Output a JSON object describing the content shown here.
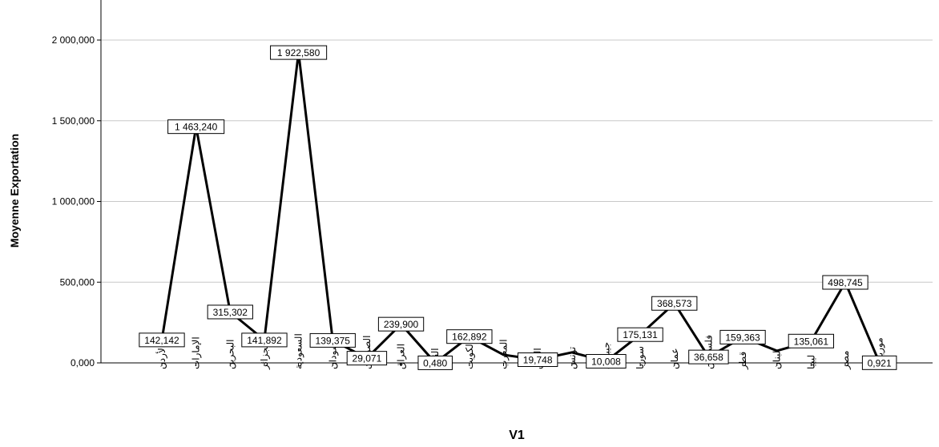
{
  "chart_data": {
    "type": "line",
    "title": "",
    "xlabel": "V1",
    "ylabel": "Moyenne Exportation",
    "ylim": [
      0,
      2000000
    ],
    "y_ticks": [
      {
        "value": 0,
        "label": "0,000"
      },
      {
        "value": 500000,
        "label": "500,000"
      },
      {
        "value": 1000000,
        "label": "1 000,000"
      },
      {
        "value": 1500000,
        "label": "1 500,000"
      },
      {
        "value": 2000000,
        "label": "2 000,000"
      }
    ],
    "grid": "horizontal",
    "line_color": "#000000",
    "categories": [
      "الأردن",
      "الإمارات",
      "البحرين",
      "الجزائر",
      "السعودية",
      "السودان",
      "الصومال",
      "العراق",
      "القمر",
      "الكويت",
      "المغرب",
      "اليمن",
      "تونس",
      "جيبوتي",
      "سوريا",
      "عمان",
      "فلسطين",
      "قطر",
      "لبنان",
      "ليبيا",
      "مصر",
      "موريتانيا"
    ],
    "values": [
      142142,
      1463240,
      315302,
      141892,
      1922580,
      139375,
      29071,
      239900,
      480,
      162892,
      50000,
      19748,
      65000,
      10008,
      175131,
      368573,
      36658,
      159363,
      75000,
      135061,
      498745,
      921
    ],
    "data_labels": [
      "142,142",
      "1 463,240",
      "315,302",
      "141,892",
      "1 922,580",
      "139,375",
      "29,071",
      "239,900",
      "0,480",
      "162,892",
      "",
      "19,748",
      "",
      "10,008",
      "175,131",
      "368,573",
      "36,658",
      "159,363",
      "",
      "135,061",
      "498,745",
      "0,921"
    ]
  }
}
